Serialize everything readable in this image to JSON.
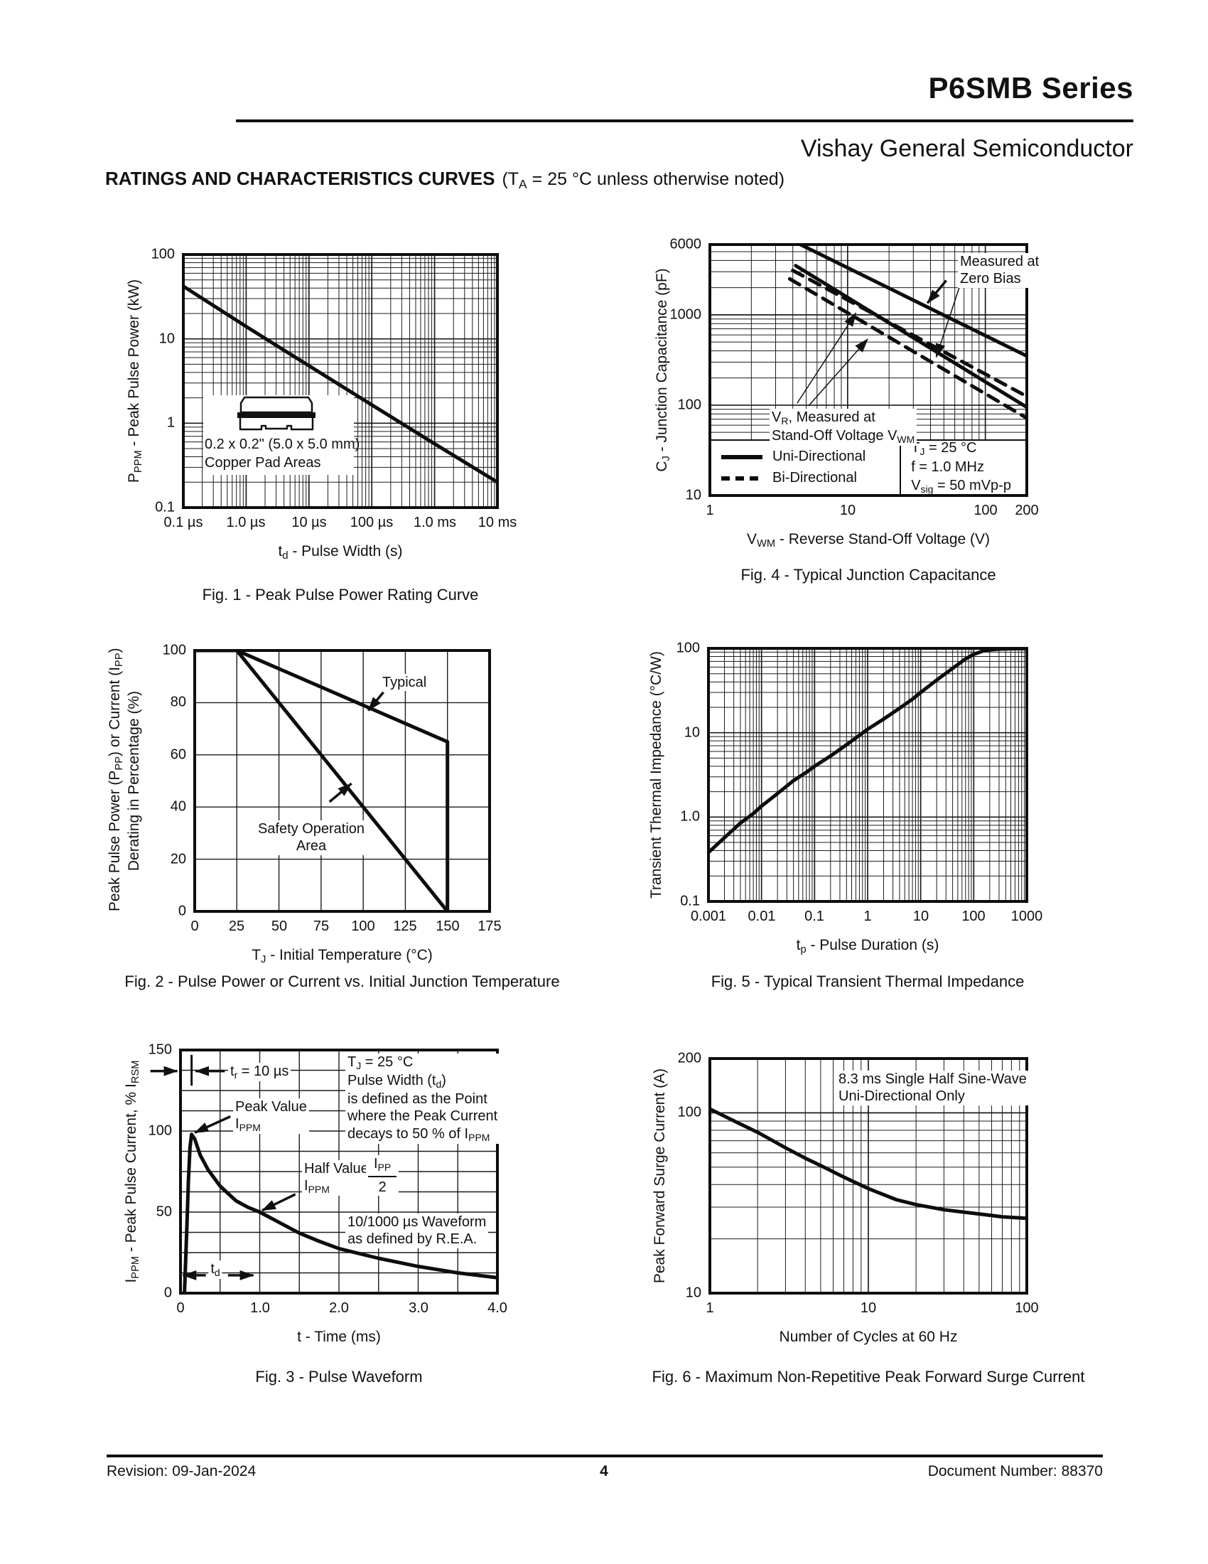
{
  "page": {
    "title": "P6SMB Series",
    "subtitle": "Vishay General Semiconductor",
    "heading": "RATINGS AND CHARACTERISTICS CURVES",
    "heading_condition": "(T~A~ = 25 °C unless otherwise noted)",
    "footer": {
      "revision": "Revision: 09-Jan-2024",
      "page_number": "4",
      "document_number": "Document Number: 88370"
    }
  },
  "chart_data": [
    {
      "id": "fig1",
      "type": "line",
      "title": "Fig. 1 - Peak Pulse Power Rating Curve",
      "xlabel": "t~d~ - Pulse Width (s)",
      "ylabel": "P~PPM~ - Peak Pulse Power (kW)",
      "xscale": "log",
      "yscale": "log",
      "xlim": [
        1e-07,
        0.01
      ],
      "ylim": [
        0.1,
        100
      ],
      "grid": "log-minor",
      "xticks": [
        {
          "v": 1e-07,
          "label": "0.1 µs"
        },
        {
          "v": 1e-06,
          "label": "1.0 µs"
        },
        {
          "v": 1e-05,
          "label": "10 µs"
        },
        {
          "v": 0.0001,
          "label": "100 µs"
        },
        {
          "v": 0.001,
          "label": "1.0 ms"
        },
        {
          "v": 0.01,
          "label": "10 ms"
        }
      ],
      "yticks": [
        {
          "v": 100,
          "label": "100"
        },
        {
          "v": 10,
          "label": "10"
        },
        {
          "v": 1,
          "label": "1"
        },
        {
          "v": 0.1,
          "label": "0.1"
        }
      ],
      "series": [
        {
          "name": "peak-pulse-power-rating",
          "style": "solid",
          "points": [
            [
              1e-07,
              42
            ],
            [
              1e-06,
              14
            ],
            [
              1e-05,
              4.8
            ],
            [
              0.0001,
              1.65
            ],
            [
              0.001,
              0.57
            ],
            [
              0.01,
              0.2
            ]
          ]
        }
      ],
      "inset": {
        "line1": "0.2 x 0.2\" (5.0 x 5.0 mm)",
        "line2": "Copper Pad Areas"
      }
    },
    {
      "id": "fig4",
      "type": "line",
      "title": "Fig. 4 - Typical Junction Capacitance",
      "xlabel": "V~WM~ - Reverse Stand-Off Voltage (V)",
      "ylabel": "C~J~ - Junction Capacitance (pF)",
      "xscale": "log",
      "yscale": "log",
      "xlim": [
        1,
        200
      ],
      "ylim": [
        10,
        6000
      ],
      "grid": "log-minor",
      "xticks": [
        {
          "v": 1,
          "label": "1"
        },
        {
          "v": 10,
          "label": "10"
        },
        {
          "v": 100,
          "label": "100"
        },
        {
          "v": 200,
          "label": "200"
        }
      ],
      "yticks": [
        {
          "v": 6000,
          "label": "6000"
        },
        {
          "v": 1000,
          "label": "1000"
        },
        {
          "v": 100,
          "label": "100"
        },
        {
          "v": 10,
          "label": "10"
        }
      ],
      "series": [
        {
          "name": "uni-directional-zero-bias",
          "style": "solid",
          "points": [
            [
              4,
              6600
            ],
            [
              200,
              350
            ]
          ]
        },
        {
          "name": "uni-directional-at-vwm",
          "style": "solid",
          "points": [
            [
              4.2,
              3500
            ],
            [
              200,
              95
            ]
          ]
        },
        {
          "name": "bi-directional-zero-bias",
          "style": "dashed",
          "points": [
            [
              4,
              3100
            ],
            [
              200,
              125
            ]
          ]
        },
        {
          "name": "bi-directional-at-vwm",
          "style": "dashed",
          "points": [
            [
              3.8,
              2500
            ],
            [
              200,
              72
            ]
          ]
        }
      ],
      "legend": {
        "entries": [
          {
            "style": "solid",
            "label": "Uni-Directional"
          },
          {
            "style": "dashed",
            "label": "Bi-Directional"
          }
        ],
        "conditions": [
          "T~J~ = 25 °C",
          "f = 1.0 MHz",
          "V~sig~ = 50 mVp-p"
        ]
      },
      "annotations": [
        {
          "text": "Measured at\nZero Bias",
          "x": 63,
          "y": 4840,
          "align": "left",
          "bg": true,
          "arrows": [
            {
              "from": [
                52,
                2400
              ],
              "to": [
                38,
                1350
              ],
              "w": 3.5
            },
            {
              "from": [
                72,
                3300
              ],
              "to": [
                44,
                340
              ],
              "w": 1.5
            }
          ]
        },
        {
          "text": "V~R~, Measured at\nStand-Off Voltage V~WM~",
          "x": 2.7,
          "y": 92,
          "align": "left",
          "bg": true,
          "arrows": [
            {
              "from": [
                4.3,
                105
              ],
              "to": [
                11.5,
                1050
              ],
              "w": 1.5
            },
            {
              "from": [
                5.2,
                98
              ],
              "to": [
                14,
                540
              ],
              "w": 1.5
            }
          ]
        }
      ]
    },
    {
      "id": "fig2",
      "type": "line",
      "title": "Fig. 2 - Pulse Power or Current vs. Initial Junction Temperature",
      "xlabel": "T~J~ - Initial Temperature (°C)",
      "ylabel": "Peak Pulse Power (P~PP~) or Current (I~PP~)\nDerating in Percentage (%)",
      "xscale": "linear",
      "yscale": "linear",
      "xlim": [
        0,
        175
      ],
      "ylim": [
        0,
        100
      ],
      "grid": "linear",
      "xstep": 25,
      "ystep": 20,
      "xticks": [
        {
          "v": 0,
          "label": "0"
        },
        {
          "v": 25,
          "label": "25"
        },
        {
          "v": 50,
          "label": "50"
        },
        {
          "v": 75,
          "label": "75"
        },
        {
          "v": 100,
          "label": "100"
        },
        {
          "v": 125,
          "label": "125"
        },
        {
          "v": 150,
          "label": "150"
        },
        {
          "v": 175,
          "label": "175"
        }
      ],
      "yticks": [
        {
          "v": 100,
          "label": "100"
        },
        {
          "v": 80,
          "label": "80"
        },
        {
          "v": 60,
          "label": "60"
        },
        {
          "v": 40,
          "label": "40"
        },
        {
          "v": 20,
          "label": "20"
        },
        {
          "v": 0,
          "label": "0"
        }
      ],
      "series": [
        {
          "name": "typical-derating",
          "style": "solid",
          "points": [
            [
              0,
              100
            ],
            [
              25,
              100
            ],
            [
              150,
              65
            ],
            [
              150,
              0
            ]
          ]
        },
        {
          "name": "safety-operation-area",
          "style": "solid",
          "points": [
            [
              0,
              100
            ],
            [
              25,
              100
            ],
            [
              150,
              0
            ]
          ]
        }
      ],
      "annotations": [
        {
          "text": "Typical",
          "x": 110,
          "y": 91,
          "align": "left",
          "bg": true,
          "arrows": [
            {
              "from": [
                112,
                84
              ],
              "to": [
                103,
                77
              ],
              "w": 3.5
            }
          ]
        },
        {
          "text": "Safety Operation\nArea",
          "x": 69,
          "y": 35,
          "align": "center",
          "bg": true,
          "arrows": [
            {
              "from": [
                80,
                42
              ],
              "to": [
                93,
                49
              ],
              "w": 3.5
            }
          ]
        }
      ]
    },
    {
      "id": "fig5",
      "type": "line",
      "title": "Fig. 5 - Typical Transient Thermal Impedance",
      "xlabel": "t~p~ - Pulse Duration (s)",
      "ylabel": "Transient Thermal Impedance (°C/W)",
      "xscale": "log",
      "yscale": "log",
      "xlim": [
        0.001,
        1000
      ],
      "ylim": [
        0.1,
        100
      ],
      "grid": "log-minor",
      "xticks": [
        {
          "v": 0.001,
          "label": "0.001"
        },
        {
          "v": 0.01,
          "label": "0.01"
        },
        {
          "v": 0.1,
          "label": "0.1"
        },
        {
          "v": 1,
          "label": "1"
        },
        {
          "v": 10,
          "label": "10"
        },
        {
          "v": 100,
          "label": "100"
        },
        {
          "v": 1000,
          "label": "1000"
        }
      ],
      "yticks": [
        {
          "v": 100,
          "label": "100"
        },
        {
          "v": 10,
          "label": "10"
        },
        {
          "v": 1,
          "label": "1.0"
        },
        {
          "v": 0.1,
          "label": "0.1"
        }
      ],
      "series": [
        {
          "name": "transient-thermal-impedance",
          "style": "solid",
          "points": [
            [
              0.001,
              0.38
            ],
            [
              0.002,
              0.57
            ],
            [
              0.004,
              0.85
            ],
            [
              0.007,
              1.1
            ],
            [
              0.01,
              1.35
            ],
            [
              0.02,
              1.9
            ],
            [
              0.04,
              2.7
            ],
            [
              0.07,
              3.4
            ],
            [
              0.1,
              4.0
            ],
            [
              0.2,
              5.3
            ],
            [
              0.4,
              7.2
            ],
            [
              0.7,
              9.3
            ],
            [
              1,
              11
            ],
            [
              2,
              14.5
            ],
            [
              4,
              19.5
            ],
            [
              7,
              25
            ],
            [
              10,
              30
            ],
            [
              20,
              42
            ],
            [
              40,
              58
            ],
            [
              70,
              75
            ],
            [
              100,
              85
            ],
            [
              150,
              93
            ],
            [
              200,
              96
            ],
            [
              300,
              98
            ],
            [
              500,
              99
            ],
            [
              1000,
              99.5
            ]
          ]
        }
      ]
    },
    {
      "id": "fig3",
      "type": "line",
      "title": "Fig. 3 - Pulse Waveform",
      "xlabel": "t - Time (ms)",
      "ylabel": "I~PPM~ - Peak Pulse Current, % I~RSM~",
      "xscale": "linear",
      "yscale": "linear",
      "xlim": [
        0,
        4
      ],
      "ylim": [
        0,
        150
      ],
      "grid": "linear",
      "xstep": 0.5,
      "ystep": 12.5,
      "xticks": [
        {
          "v": 0,
          "label": "0"
        },
        {
          "v": 1,
          "label": "1.0"
        },
        {
          "v": 2,
          "label": "2.0"
        },
        {
          "v": 3,
          "label": "3.0"
        },
        {
          "v": 4,
          "label": "4.0"
        }
      ],
      "yticks": [
        {
          "v": 150,
          "label": "150"
        },
        {
          "v": 100,
          "label": "100"
        },
        {
          "v": 50,
          "label": "50"
        },
        {
          "v": 0,
          "label": "0"
        }
      ],
      "series": [
        {
          "name": "pulse-waveform",
          "style": "solid",
          "points": [
            [
              0.05,
              0
            ],
            [
              0.08,
              40
            ],
            [
              0.1,
              70
            ],
            [
              0.12,
              90
            ],
            [
              0.14,
              98
            ],
            [
              0.18,
              95
            ],
            [
              0.25,
              85
            ],
            [
              0.35,
              76
            ],
            [
              0.5,
              66
            ],
            [
              0.7,
              57
            ],
            [
              0.85,
              53
            ],
            [
              1.0,
              50
            ],
            [
              1.25,
              43.5
            ],
            [
              1.5,
              37
            ],
            [
              1.75,
              32
            ],
            [
              2.0,
              27.5
            ],
            [
              2.5,
              21.5
            ],
            [
              3.0,
              16.5
            ],
            [
              3.5,
              12.5
            ],
            [
              4.0,
              9.5
            ]
          ]
        }
      ],
      "annotations": [
        {
          "text": "t~r~ = 10 µs",
          "x": 0.6,
          "y": 142,
          "align": "left",
          "bg": true,
          "arrows": [
            {
              "from": [
                0.56,
                137
              ],
              "to": [
                0.19,
                137
              ],
              "w": 3.5
            },
            {
              "from": [
                -0.38,
                137
              ],
              "to": [
                -0.04,
                137
              ],
              "w": 3.5
            }
          ],
          "segments": [
            {
              "from": [
                0.14,
                128
              ],
              "to": [
                0.14,
                147
              ]
            }
          ]
        },
        {
          "text": "Peak Value\nI~PPM~",
          "x": 0.66,
          "y": 120,
          "align": "left",
          "bg": true,
          "arrows": [
            {
              "from": [
                0.63,
                109
              ],
              "to": [
                0.18,
                99
              ],
              "w": 3.5
            }
          ]
        },
        {
          "text": "T~J~ = 25 °C\nPulse Width (t~d~)\nis defined as the Point\nwhere the Peak Current\ndecays to 50 % of I~PPM~",
          "x": 2.08,
          "y": 148,
          "align": "left",
          "bg": true
        },
        {
          "text": "Half Value -\nI~PPM~",
          "x": 1.53,
          "y": 82,
          "align": "left",
          "bg": true,
          "arrows": [
            {
              "from": [
                1.45,
                61
              ],
              "to": [
                1.03,
                51
              ],
              "w": 3.5
            }
          ]
        },
        {
          "type": "frac",
          "num": "I~PP~",
          "den": "2",
          "x": 2.34,
          "y": 85,
          "align": "left",
          "bg": true
        },
        {
          "text": "10/1000 µs Waveform\nas defined by R.E.A.",
          "x": 2.08,
          "y": 49,
          "align": "left",
          "bg": true
        },
        {
          "text": "t~d~",
          "x": 0.44,
          "y": 20,
          "align": "center",
          "bg": true,
          "arrows": [
            {
              "from": [
                0.32,
                11
              ],
              "to": [
                0.03,
                11
              ],
              "w": 3.5
            },
            {
              "from": [
                0.6,
                11
              ],
              "to": [
                0.92,
                11
              ],
              "w": 3.5
            }
          ]
        }
      ]
    },
    {
      "id": "fig6",
      "type": "line",
      "title": "Fig. 6 - Maximum Non-Repetitive Peak Forward Surge Current",
      "xlabel": "Number of Cycles at 60 Hz",
      "ylabel": "Peak Forward Surge Current (A)",
      "xscale": "log",
      "yscale": "log",
      "xlim": [
        1,
        100
      ],
      "ylim": [
        10,
        200
      ],
      "grid": "log-minor",
      "xticks": [
        {
          "v": 1,
          "label": "1"
        },
        {
          "v": 10,
          "label": "10"
        },
        {
          "v": 100,
          "label": "100"
        }
      ],
      "yticks": [
        {
          "v": 200,
          "label": "200"
        },
        {
          "v": 100,
          "label": "100"
        },
        {
          "v": 10,
          "label": "10"
        }
      ],
      "series": [
        {
          "name": "peak-forward-surge-current",
          "style": "solid",
          "points": [
            [
              1,
              105
            ],
            [
              1.5,
              88
            ],
            [
              2,
              78
            ],
            [
              3,
              64
            ],
            [
              4,
              56
            ],
            [
              5,
              51
            ],
            [
              7,
              44
            ],
            [
              10,
              38
            ],
            [
              15,
              33
            ],
            [
              20,
              31
            ],
            [
              30,
              29
            ],
            [
              50,
              27.5
            ],
            [
              70,
              26.5
            ],
            [
              100,
              26
            ]
          ]
        }
      ],
      "annotations": [
        {
          "text": "8.3 ms Single Half Sine-Wave\nUni-Directional Only",
          "x": 6.3,
          "y": 172,
          "align": "left",
          "bg": true
        }
      ]
    }
  ]
}
